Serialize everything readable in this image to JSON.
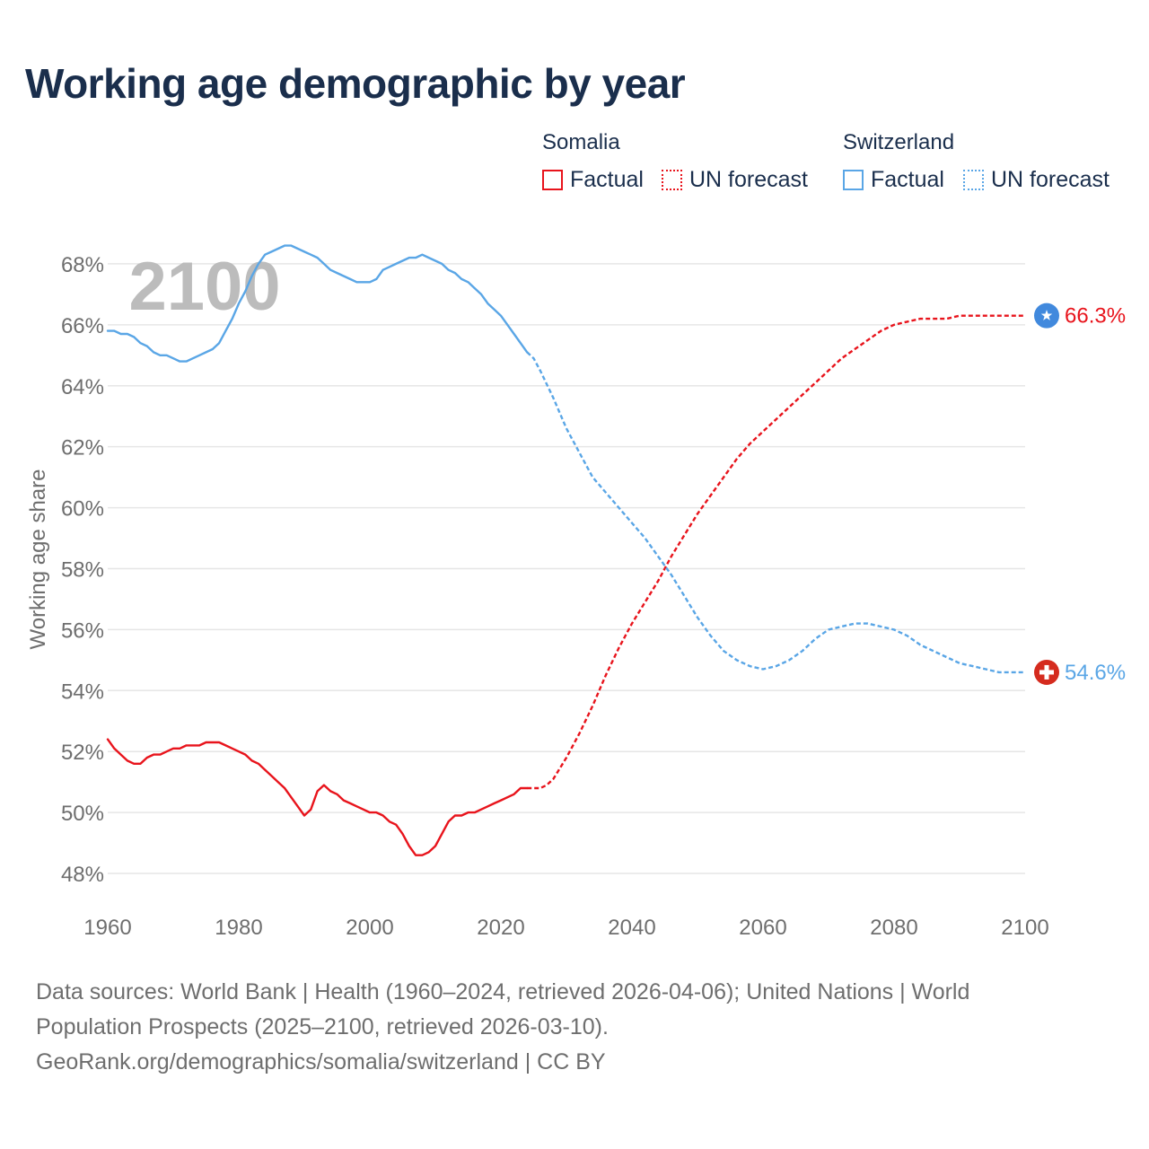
{
  "title": "Working age demographic by year",
  "legend": {
    "groups": [
      {
        "name": "Somalia",
        "color": "#e8141c",
        "factual_label": "Factual",
        "forecast_label": "UN forecast"
      },
      {
        "name": "Switzerland",
        "color": "#5aa6e6",
        "factual_label": "Factual",
        "forecast_label": "UN forecast"
      }
    ]
  },
  "footer": {
    "line1": "Data sources: World Bank | Health (1960–2024, retrieved 2026-04-06); United Nations | World",
    "line2": "Population Prospects (2025–2100, retrieved 2026-03-10).",
    "line3": "GeoRank.org/demographics/somalia/switzerland | CC BY"
  },
  "icons": {
    "somalia_flag": "somalia-flag-icon",
    "switzerland_flag": "switzerland-flag-icon"
  },
  "chart_data": {
    "type": "line",
    "title": "Working age demographic by year",
    "xlabel": "",
    "ylabel": "Working age share",
    "xlim": [
      1960,
      2100
    ],
    "ylim": [
      47,
      69.5
    ],
    "x_ticks": [
      1960,
      1980,
      2000,
      2020,
      2040,
      2060,
      2080,
      2100
    ],
    "y_ticks": [
      48,
      50,
      52,
      54,
      56,
      58,
      60,
      62,
      64,
      66,
      68
    ],
    "y_tick_suffix": "%",
    "year_watermark": "2100",
    "forecast_start": 2025,
    "grid": true,
    "series": [
      {
        "name": "Somalia",
        "color": "#e8141c",
        "end_label": "66.3%",
        "factual": {
          "x": [
            1960,
            1961,
            1962,
            1963,
            1964,
            1965,
            1966,
            1967,
            1968,
            1969,
            1970,
            1971,
            1972,
            1973,
            1974,
            1975,
            1976,
            1977,
            1978,
            1979,
            1980,
            1981,
            1982,
            1983,
            1984,
            1985,
            1986,
            1987,
            1988,
            1989,
            1990,
            1991,
            1992,
            1993,
            1994,
            1995,
            1996,
            1997,
            1998,
            1999,
            2000,
            2001,
            2002,
            2003,
            2004,
            2005,
            2006,
            2007,
            2008,
            2009,
            2010,
            2011,
            2012,
            2013,
            2014,
            2015,
            2016,
            2017,
            2018,
            2019,
            2020,
            2021,
            2022,
            2023,
            2024
          ],
          "y": [
            52.4,
            52.1,
            51.9,
            51.7,
            51.6,
            51.6,
            51.8,
            51.9,
            51.9,
            52.0,
            52.1,
            52.1,
            52.2,
            52.2,
            52.2,
            52.3,
            52.3,
            52.3,
            52.2,
            52.1,
            52.0,
            51.9,
            51.7,
            51.6,
            51.4,
            51.2,
            51.0,
            50.8,
            50.5,
            50.2,
            49.9,
            50.1,
            50.7,
            50.9,
            50.7,
            50.6,
            50.4,
            50.3,
            50.2,
            50.1,
            50.0,
            50.0,
            49.9,
            49.7,
            49.6,
            49.3,
            48.9,
            48.6,
            48.6,
            48.7,
            48.9,
            49.3,
            49.7,
            49.9,
            49.9,
            50.0,
            50.0,
            50.1,
            50.2,
            50.3,
            50.4,
            50.5,
            50.6,
            50.8,
            50.8
          ]
        },
        "forecast": {
          "x": [
            2024,
            2025,
            2026,
            2027,
            2028,
            2030,
            2032,
            2034,
            2036,
            2038,
            2040,
            2042,
            2044,
            2046,
            2048,
            2050,
            2052,
            2054,
            2056,
            2058,
            2060,
            2062,
            2064,
            2066,
            2068,
            2070,
            2072,
            2074,
            2076,
            2078,
            2080,
            2082,
            2084,
            2086,
            2088,
            2090,
            2092,
            2094,
            2096,
            2098,
            2100
          ],
          "y": [
            50.8,
            50.8,
            50.8,
            50.9,
            51.1,
            51.8,
            52.6,
            53.5,
            54.5,
            55.4,
            56.2,
            56.9,
            57.6,
            58.4,
            59.1,
            59.8,
            60.4,
            61.0,
            61.6,
            62.1,
            62.5,
            62.9,
            63.3,
            63.7,
            64.1,
            64.5,
            64.9,
            65.2,
            65.5,
            65.8,
            66.0,
            66.1,
            66.2,
            66.2,
            66.2,
            66.3,
            66.3,
            66.3,
            66.3,
            66.3,
            66.3
          ]
        }
      },
      {
        "name": "Switzerland",
        "color": "#5aa6e6",
        "end_label": "54.6%",
        "factual": {
          "x": [
            1960,
            1961,
            1962,
            1963,
            1964,
            1965,
            1966,
            1967,
            1968,
            1969,
            1970,
            1971,
            1972,
            1973,
            1974,
            1975,
            1976,
            1977,
            1978,
            1979,
            1980,
            1981,
            1982,
            1983,
            1984,
            1985,
            1986,
            1987,
            1988,
            1989,
            1990,
            1991,
            1992,
            1993,
            1994,
            1995,
            1996,
            1997,
            1998,
            1999,
            2000,
            2001,
            2002,
            2003,
            2004,
            2005,
            2006,
            2007,
            2008,
            2009,
            2010,
            2011,
            2012,
            2013,
            2014,
            2015,
            2016,
            2017,
            2018,
            2019,
            2020,
            2021,
            2022,
            2023,
            2024
          ],
          "y": [
            65.8,
            65.8,
            65.7,
            65.7,
            65.6,
            65.4,
            65.3,
            65.1,
            65.0,
            65.0,
            64.9,
            64.8,
            64.8,
            64.9,
            65.0,
            65.1,
            65.2,
            65.4,
            65.8,
            66.2,
            66.7,
            67.1,
            67.6,
            68.0,
            68.3,
            68.4,
            68.5,
            68.6,
            68.6,
            68.5,
            68.4,
            68.3,
            68.2,
            68.0,
            67.8,
            67.7,
            67.6,
            67.5,
            67.4,
            67.4,
            67.4,
            67.5,
            67.8,
            67.9,
            68.0,
            68.1,
            68.2,
            68.2,
            68.3,
            68.2,
            68.1,
            68.0,
            67.8,
            67.7,
            67.5,
            67.4,
            67.2,
            67.0,
            66.7,
            66.5,
            66.3,
            66.0,
            65.7,
            65.4,
            65.1
          ],
          "_note": ""
        },
        "forecast": {
          "x": [
            2024,
            2025,
            2026,
            2028,
            2030,
            2032,
            2034,
            2036,
            2038,
            2040,
            2042,
            2044,
            2046,
            2048,
            2050,
            2052,
            2054,
            2056,
            2058,
            2060,
            2062,
            2064,
            2066,
            2068,
            2070,
            2072,
            2074,
            2076,
            2078,
            2080,
            2082,
            2084,
            2086,
            2088,
            2090,
            2092,
            2094,
            2096,
            2098,
            2100
          ],
          "y": [
            65.1,
            64.9,
            64.5,
            63.6,
            62.6,
            61.8,
            61.0,
            60.5,
            60.0,
            59.5,
            59.0,
            58.4,
            57.8,
            57.1,
            56.4,
            55.8,
            55.3,
            55.0,
            54.8,
            54.7,
            54.8,
            55.0,
            55.3,
            55.7,
            56.0,
            56.1,
            56.2,
            56.2,
            56.1,
            56.0,
            55.8,
            55.5,
            55.3,
            55.1,
            54.9,
            54.8,
            54.7,
            54.6,
            54.6,
            54.6
          ]
        }
      }
    ]
  }
}
